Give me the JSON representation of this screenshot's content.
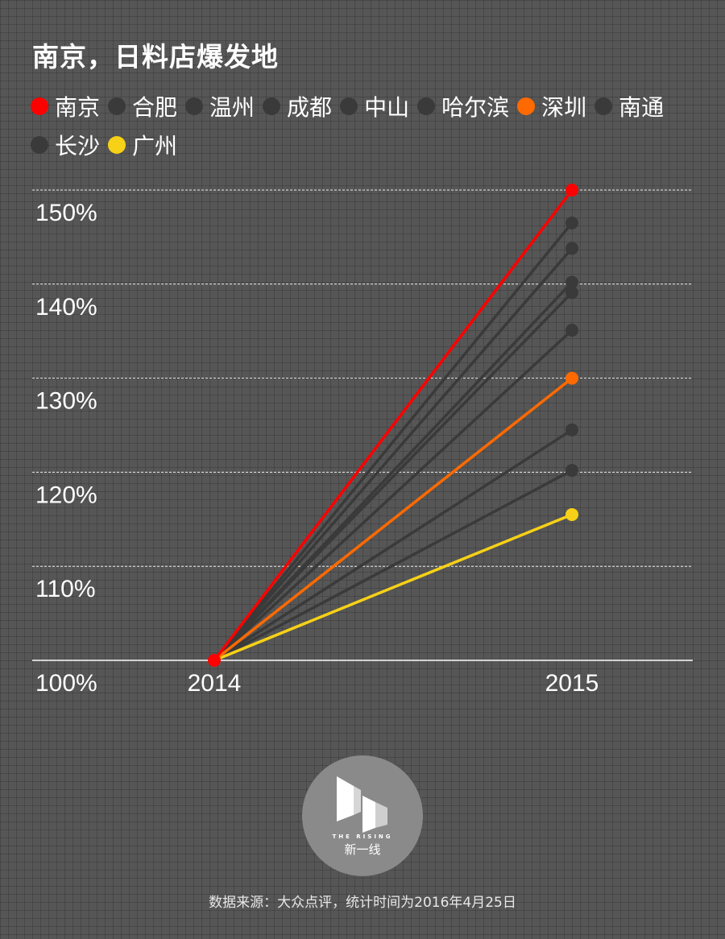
{
  "title": "南京，日料店爆发地",
  "colors": {
    "background": "#565656",
    "muted": "#3a3a3a",
    "highlight_red": "#ff0000",
    "highlight_orange": "#ff6a00",
    "highlight_yellow": "#f7d117"
  },
  "chart_data": {
    "type": "line",
    "x": [
      "2014",
      "2015"
    ],
    "ylim": [
      100,
      150
    ],
    "yticks": [
      "100%",
      "110%",
      "120%",
      "130%",
      "140%",
      "150%"
    ],
    "grid": true,
    "legend_position": "top",
    "series": [
      {
        "name": "南京",
        "values": [
          100,
          150
        ],
        "color": "#ff0000",
        "highlight": true
      },
      {
        "name": "合肥",
        "values": [
          100,
          146.5
        ],
        "color": "#3a3a3a",
        "highlight": false
      },
      {
        "name": "温州",
        "values": [
          100,
          143.8
        ],
        "color": "#3a3a3a",
        "highlight": false
      },
      {
        "name": "成都",
        "values": [
          100,
          140.2
        ],
        "color": "#3a3a3a",
        "highlight": false
      },
      {
        "name": "中山",
        "values": [
          100,
          139.1
        ],
        "color": "#3a3a3a",
        "highlight": false
      },
      {
        "name": "哈尔滨",
        "values": [
          100,
          135.1
        ],
        "color": "#3a3a3a",
        "highlight": false
      },
      {
        "name": "深圳",
        "values": [
          100,
          130
        ],
        "color": "#ff6a00",
        "highlight": true
      },
      {
        "name": "南通",
        "values": [
          100,
          124.5
        ],
        "color": "#3a3a3a",
        "highlight": false
      },
      {
        "name": "长沙",
        "values": [
          100,
          120.2
        ],
        "color": "#3a3a3a",
        "highlight": false
      },
      {
        "name": "广州",
        "values": [
          100,
          115.5
        ],
        "color": "#f7d117",
        "highlight": true
      }
    ]
  },
  "logo": {
    "en": "THE RISING",
    "cn": "新一线"
  },
  "footer": "数据来源：大众点评，统计时间为2016年4月25日"
}
